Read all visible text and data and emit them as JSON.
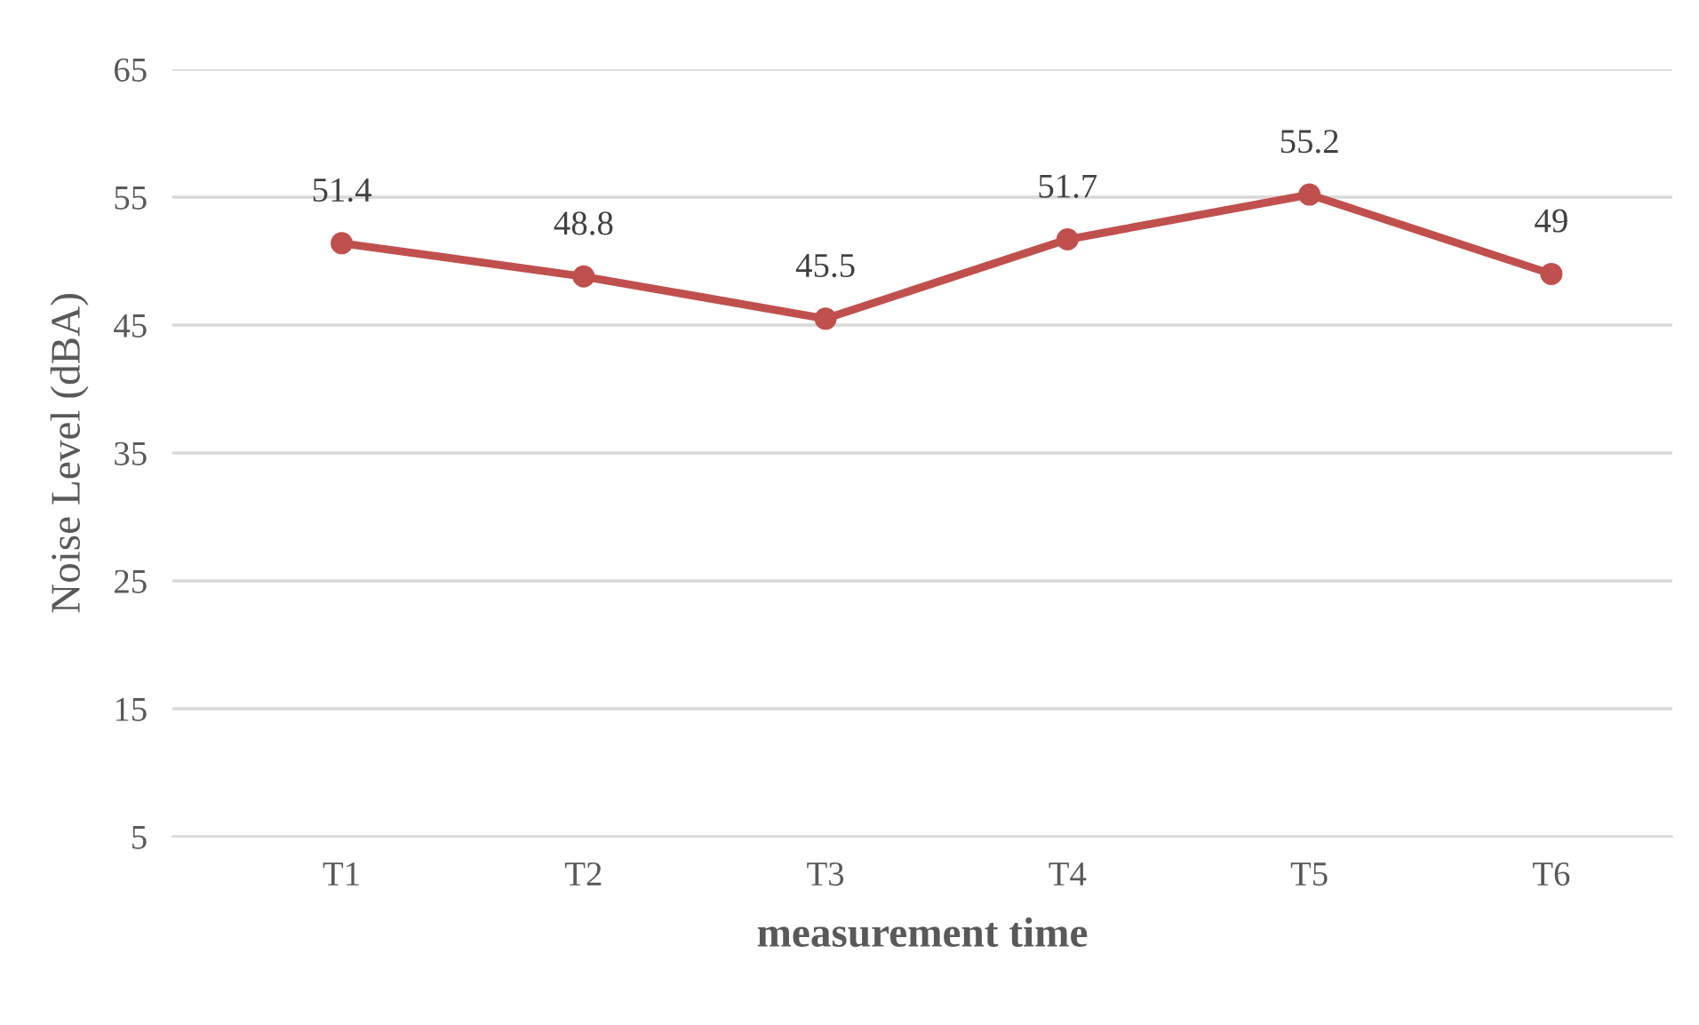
{
  "chart_data": {
    "type": "line",
    "xlabel": "measurement time",
    "ylabel": "Noise Level (dBA)",
    "categories": [
      "T1",
      "T2",
      "T3",
      "T4",
      "T5",
      "T6"
    ],
    "series": [
      {
        "color": "#c0504d",
        "values": [
          51.4,
          48.8,
          45.5,
          51.7,
          55.2,
          49
        ]
      }
    ],
    "ylim": [
      5,
      65
    ],
    "yticks": [
      5,
      15,
      25,
      35,
      45,
      55,
      65
    ],
    "grid": "y",
    "marker": "circle",
    "line_style": "solid",
    "data_labels": true
  }
}
